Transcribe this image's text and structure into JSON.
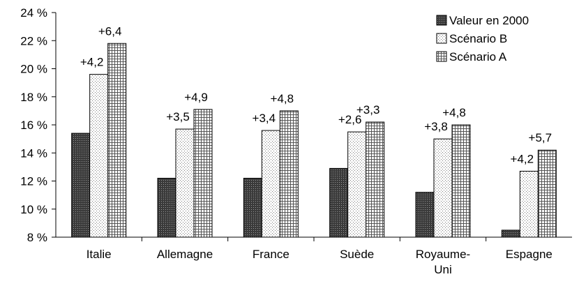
{
  "chart_data": {
    "type": "bar",
    "categories": [
      "Italie",
      "Allemagne",
      "France",
      "Suède",
      "Royaume-\nUni",
      "Espagne"
    ],
    "series": [
      {
        "name": "Valeur en 2000",
        "values": [
          15.4,
          12.2,
          12.2,
          12.9,
          11.2,
          8.5
        ],
        "pattern": "dark-crosshatch"
      },
      {
        "name": "Scénario B",
        "values": [
          19.6,
          15.7,
          15.6,
          15.5,
          15.0,
          12.7
        ],
        "pattern": "light-dots"
      },
      {
        "name": "Scénario A",
        "values": [
          21.8,
          17.1,
          17.0,
          16.2,
          16.0,
          14.2
        ],
        "pattern": "grid"
      }
    ],
    "annotations": [
      {
        "category": 0,
        "series": 1,
        "text": "+4,2"
      },
      {
        "category": 0,
        "series": 2,
        "text": "+6,4"
      },
      {
        "category": 1,
        "series": 1,
        "text": "+3,5"
      },
      {
        "category": 1,
        "series": 2,
        "text": "+4,9"
      },
      {
        "category": 2,
        "series": 1,
        "text": "+3,4"
      },
      {
        "category": 2,
        "series": 2,
        "text": "+4,8"
      },
      {
        "category": 3,
        "series": 1,
        "text": "+2,6"
      },
      {
        "category": 3,
        "series": 2,
        "text": "+3,3"
      },
      {
        "category": 4,
        "series": 1,
        "text": "+3,8"
      },
      {
        "category": 4,
        "series": 2,
        "text": "+4,8"
      },
      {
        "category": 5,
        "series": 1,
        "text": "+4,2"
      },
      {
        "category": 5,
        "series": 2,
        "text": "+5,7"
      }
    ],
    "y_ticks": [
      "8 %",
      "10 %",
      "12 %",
      "14 %",
      "16 %",
      "18 %",
      "20 %",
      "22 %",
      "24 %"
    ],
    "ylim": [
      8,
      24
    ],
    "y_step": 2,
    "grid": false,
    "legend_position": "top-right",
    "title": "",
    "xlabel": "",
    "ylabel": ""
  }
}
